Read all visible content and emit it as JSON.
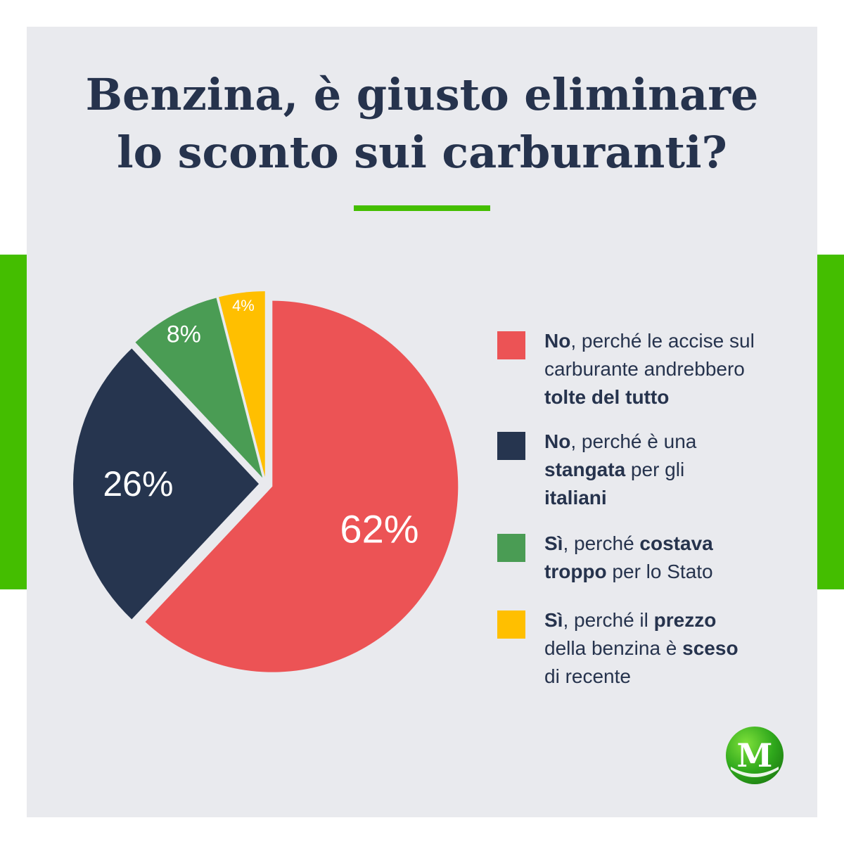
{
  "title": {
    "line1": "Benzina, è giusto eliminare",
    "line2": "lo sconto sui carburanti?"
  },
  "colors": {
    "background": "#e9eaee",
    "accent_green": "#44be00",
    "text": "#26334d",
    "red": "#ec5355",
    "navy": "#26354f",
    "green": "#4a9c54",
    "yellow": "#ffbf00"
  },
  "chart_data": {
    "type": "pie",
    "title": "Benzina, è giusto eliminare lo sconto sui carburanti?",
    "slices": [
      {
        "label": "No, perché le accise sul carburante andrebbero tolte del tutto",
        "value": 62,
        "display": "62%",
        "color": "#ec5355"
      },
      {
        "label": "No, perché è una stangata per gli italiani",
        "value": 26,
        "display": "26%",
        "color": "#26354f"
      },
      {
        "label": "Sì, perché costava troppo per lo Stato",
        "value": 8,
        "display": "8%",
        "color": "#4a9c54"
      },
      {
        "label": "Sì, perché il prezzo della benzina è sceso di recente",
        "value": 4,
        "display": "4%",
        "color": "#ffbf00"
      }
    ],
    "legend_placement": "right"
  },
  "legend": [
    {
      "color": "#ec5355",
      "lines": [
        [
          {
            "t": "No",
            "b": true
          },
          {
            "t": ", perché le accise sul",
            "b": false
          }
        ],
        [
          {
            "t": "carburante andrebbero",
            "b": false
          }
        ],
        [
          {
            "t": "tolte del tutto",
            "b": true
          }
        ]
      ]
    },
    {
      "color": "#26354f",
      "lines": [
        [
          {
            "t": "No",
            "b": true
          },
          {
            "t": ", perché è una",
            "b": false
          }
        ],
        [
          {
            "t": "stangata",
            "b": true
          },
          {
            "t": " per gli",
            "b": false
          }
        ],
        [
          {
            "t": "italiani",
            "b": true
          }
        ]
      ]
    },
    {
      "color": "#4a9c54",
      "lines": [
        [
          {
            "t": "Sì",
            "b": true
          },
          {
            "t": ", perché ",
            "b": false
          },
          {
            "t": "costava",
            "b": true
          }
        ],
        [
          {
            "t": "troppo",
            "b": true
          },
          {
            "t": " per lo Stato",
            "b": false
          }
        ]
      ]
    },
    {
      "color": "#ffbf00",
      "lines": [
        [
          {
            "t": "Sì",
            "b": true
          },
          {
            "t": ", perché il ",
            "b": false
          },
          {
            "t": "prezzo",
            "b": true
          }
        ],
        [
          {
            "t": "della benzina è ",
            "b": false
          },
          {
            "t": "sceso",
            "b": true
          }
        ],
        [
          {
            "t": "di recente",
            "b": false
          }
        ]
      ]
    }
  ],
  "logo": {
    "letter": "M",
    "icon": "m-logo-icon"
  }
}
